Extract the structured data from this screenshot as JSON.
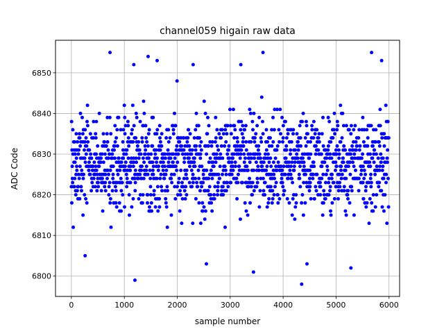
{
  "chart_data": {
    "type": "scatter",
    "title": "channel059 higain raw data",
    "xlabel": "sample number",
    "ylabel": "ADC Code",
    "xlim": [
      -300,
      6200
    ],
    "ylim": [
      6795,
      6858
    ],
    "xticks": [
      0,
      1000,
      2000,
      3000,
      4000,
      5000,
      6000
    ],
    "yticks": [
      6800,
      6810,
      6820,
      6830,
      6840,
      6850
    ],
    "grid": true,
    "legend": "none",
    "marker": "circle",
    "color": "#0000ff",
    "n_samples": 6000,
    "distribution": {
      "mean": 6828,
      "min": 6798,
      "max": 6855
    },
    "notable_points": [
      {
        "x": 730,
        "y": 6855
      },
      {
        "x": 1450,
        "y": 6854
      },
      {
        "x": 1620,
        "y": 6853
      },
      {
        "x": 3620,
        "y": 6855
      },
      {
        "x": 5670,
        "y": 6855
      },
      {
        "x": 5860,
        "y": 6853
      },
      {
        "x": 1200,
        "y": 6799
      },
      {
        "x": 4350,
        "y": 6798
      },
      {
        "x": 3440,
        "y": 6801
      },
      {
        "x": 260,
        "y": 6805
      },
      {
        "x": 2550,
        "y": 6803
      },
      {
        "x": 4450,
        "y": 6803
      },
      {
        "x": 5280,
        "y": 6802
      },
      {
        "x": 3200,
        "y": 6852
      },
      {
        "x": 2300,
        "y": 6852
      },
      {
        "x": 1180,
        "y": 6852
      }
    ]
  }
}
